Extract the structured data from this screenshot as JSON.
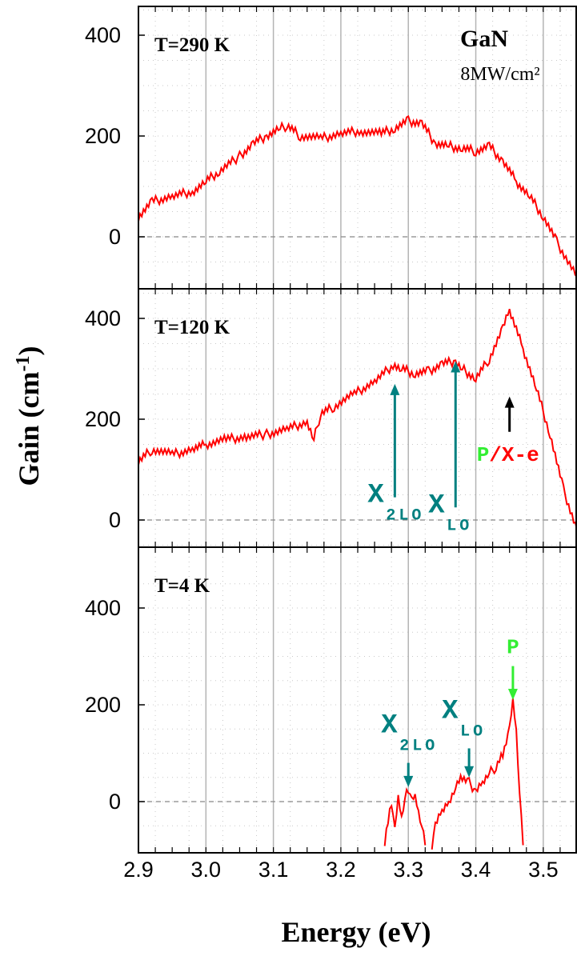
{
  "chart_data": {
    "type": "line",
    "title": "GaN",
    "subtitle": "8MW/cm²",
    "xlabel": "Energy (eV)",
    "ylabel": "Gain (cm-1)",
    "xlim": [
      2.9,
      3.55
    ],
    "ylim": [
      -90,
      450
    ],
    "x_ticks": [
      "2.9",
      "3.0",
      "3.1",
      "3.2",
      "3.3",
      "3.4",
      "3.5"
    ],
    "y_ticks": [
      "0",
      "200",
      "400"
    ],
    "grid": true,
    "colors": {
      "line": "#ff0000",
      "zero_line": "#888888",
      "annotation_teal": "#008080",
      "annotation_green": "#33ee33",
      "annotation_red": "#ff0000",
      "annotation_black": "#000000"
    },
    "panels": [
      {
        "label": "T=290 K",
        "series": [
          {
            "x": [
              2.9,
              2.92,
              2.95,
              2.98,
              3.0,
              3.02,
              3.05,
              3.07,
              3.09,
              3.11,
              3.12,
              3.14,
              3.17,
              3.2,
              3.23,
              3.26,
              3.28,
              3.3,
              3.32,
              3.34,
              3.36,
              3.38,
              3.4,
              3.42,
              3.44,
              3.46,
              3.48,
              3.5,
              3.52,
              3.55
            ],
            "y": [
              40,
              70,
              80,
              90,
              110,
              130,
              160,
              185,
              200,
              215,
              220,
              200,
              195,
              205,
              210,
              205,
              215,
              230,
              225,
              185,
              180,
              175,
              170,
              180,
              150,
              110,
              80,
              40,
              -10,
              -80
            ]
          }
        ],
        "annotations": []
      },
      {
        "label": "T=120 K",
        "series": [
          {
            "x": [
              2.9,
              2.92,
              2.95,
              2.98,
              3.0,
              3.03,
              3.06,
              3.09,
              3.12,
              3.15,
              3.16,
              3.17,
              3.19,
              3.22,
              3.25,
              3.28,
              3.29,
              3.31,
              3.33,
              3.35,
              3.37,
              3.38,
              3.4,
              3.42,
              3.44,
              3.45,
              3.47,
              3.49,
              3.51,
              3.53,
              3.55
            ],
            "y": [
              115,
              140,
              130,
              140,
              150,
              160,
              165,
              170,
              180,
              195,
              160,
              210,
              225,
              250,
              275,
              310,
              300,
              290,
              295,
              310,
              315,
              300,
              280,
              320,
              380,
              415,
              340,
              260,
              170,
              60,
              -20
            ]
          }
        ],
        "annotations": [
          {
            "text": "X",
            "sub": "2LO",
            "x": 3.28,
            "y_from": 45,
            "y_to": 270,
            "color": "#008080"
          },
          {
            "text": "X",
            "sub": "LO",
            "x": 3.37,
            "y_from": 25,
            "y_to": 315,
            "color": "#008080"
          },
          {
            "text": "P",
            "text2": "/X-e",
            "x": 3.45,
            "y_from": 175,
            "y_to": 245,
            "color": "#000000"
          }
        ]
      },
      {
        "label": "T=4 K",
        "series": [
          {
            "x": [
              3.265,
              3.27,
              3.275,
              3.28,
              3.285,
              3.29,
              3.295,
              3.3,
              3.305,
              3.31,
              3.315,
              3.32,
              3.325
            ],
            "y": [
              -90,
              -40,
              0,
              -60,
              10,
              -30,
              10,
              25,
              0,
              10,
              -20,
              -50,
              -90
            ]
          },
          {
            "x": [
              3.335,
              3.34,
              3.35,
              3.36,
              3.37,
              3.38,
              3.39,
              3.4,
              3.41,
              3.42,
              3.43,
              3.44,
              3.45,
              3.455,
              3.46,
              3.465,
              3.47
            ],
            "y": [
              -90,
              -50,
              -20,
              0,
              30,
              50,
              40,
              20,
              40,
              60,
              70,
              100,
              150,
              210,
              150,
              20,
              -90
            ]
          }
        ],
        "annotations": [
          {
            "text": "X",
            "sub": "2LO",
            "x": 3.3,
            "y_from": 80,
            "y_to": 30,
            "color": "#008080"
          },
          {
            "text": "X",
            "sub": "LO",
            "x": 3.39,
            "y_from": 110,
            "y_to": 50,
            "color": "#008080"
          },
          {
            "text": "P",
            "x": 3.455,
            "y_from": 280,
            "y_to": 210,
            "color": "#33ee33"
          }
        ]
      }
    ]
  }
}
